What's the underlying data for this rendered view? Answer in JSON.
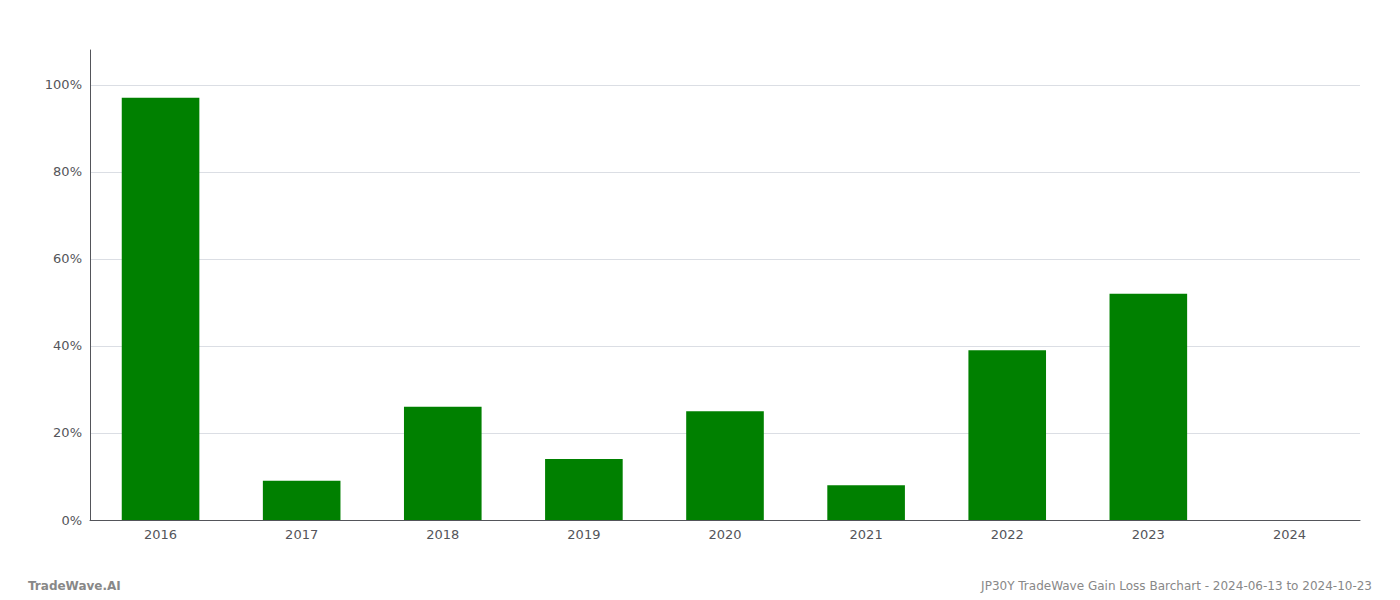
{
  "chart_data": {
    "type": "bar",
    "categories": [
      "2016",
      "2017",
      "2018",
      "2019",
      "2020",
      "2021",
      "2022",
      "2023",
      "2024"
    ],
    "values": [
      0.97,
      0.09,
      0.26,
      0.14,
      0.25,
      0.08,
      0.39,
      0.52,
      0.0
    ],
    "color": "#008000",
    "ylim": [
      0,
      1.08
    ],
    "yticks": [
      {
        "value": 0.0,
        "label": "0%"
      },
      {
        "value": 0.2,
        "label": "20%"
      },
      {
        "value": 0.4,
        "label": "40%"
      },
      {
        "value": 0.6,
        "label": "60%"
      },
      {
        "value": 0.8,
        "label": "80%"
      },
      {
        "value": 1.0,
        "label": "100%"
      }
    ],
    "grid": true,
    "annotations": [
      "TradeWave.AI",
      "JP30Y TradeWave Gain Loss Barchart - 2024-06-13 to 2024-10-23"
    ]
  }
}
